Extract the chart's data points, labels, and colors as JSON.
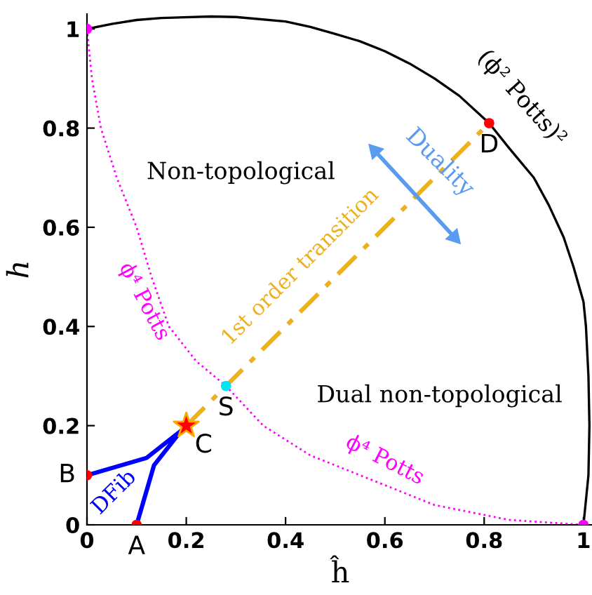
{
  "chart_data": {
    "type": "line",
    "xlabel": "ĥ",
    "ylabel": "h",
    "xlim": [
      0,
      1.02
    ],
    "ylim": [
      0,
      1.03
    ],
    "xticks": [
      0,
      0.2,
      0.4,
      0.6,
      0.8,
      1
    ],
    "yticks": [
      0,
      0.2,
      0.4,
      0.6,
      0.8,
      1
    ],
    "grid": false,
    "series": [
      {
        "name": "(ϕ² Potts)²",
        "color": "#000000",
        "line_style": "solid",
        "x": [
          0,
          0.05,
          0.1,
          0.15,
          0.25,
          0.3,
          0.4,
          0.45,
          0.5,
          0.55,
          0.6,
          0.65,
          0.7,
          0.75,
          0.81,
          0.85,
          0.9,
          0.93,
          0.96,
          0.98,
          1.0,
          1.005,
          1.01,
          1.012,
          1.01,
          1.0
        ],
        "values": [
          1,
          1.01,
          1.018,
          1.022,
          1.025,
          1.024,
          1.015,
          1.004,
          0.99,
          0.975,
          0.955,
          0.93,
          0.9,
          0.865,
          0.81,
          0.76,
          0.7,
          0.645,
          0.58,
          0.52,
          0.45,
          0.4,
          0.3,
          0.2,
          0.1,
          0
        ]
      },
      {
        "name": "ϕ⁴ Potts",
        "color": "#ff00ff",
        "line_style": "dotted",
        "x": [
          0,
          0.01,
          0.028,
          0.06,
          0.1,
          0.13,
          0.165,
          0.22,
          0.28,
          0.355,
          0.45,
          0.55,
          0.7,
          0.85,
          1
        ],
        "values": [
          1,
          0.9,
          0.8,
          0.7,
          0.6,
          0.5,
          0.4,
          0.33,
          0.28,
          0.2,
          0.14,
          0.1,
          0.04,
          0.01,
          0
        ]
      },
      {
        "name": "1st order transition",
        "color": "#edb120",
        "line_style": "dashed",
        "x": [
          0.2,
          0.81
        ],
        "values": [
          0.2,
          0.81
        ]
      },
      {
        "name": "DFib",
        "color": "#0000ff",
        "line_style": "solid",
        "x": [
          0,
          0.12,
          0.19,
          0.19,
          0.135,
          0.1
        ],
        "values": [
          0.1,
          0.135,
          0.19,
          0.19,
          0.12,
          0
        ]
      },
      {
        "name": "Duality",
        "marker": "triangle",
        "color": "#5b9bef",
        "x": [
          0.58,
          0.74
        ],
        "values": [
          0.754,
          0.58
        ]
      },
      {
        "type": "scatter",
        "color": "#ff0000",
        "marker": "circle",
        "x": [
          0.1,
          0,
          0.81
        ],
        "values": [
          0,
          0.1,
          0.81
        ]
      },
      {
        "type": "scatter",
        "color": "#ff0000",
        "marker": "star",
        "x": [
          0.2
        ],
        "values": [
          0.2
        ]
      },
      {
        "type": "scatter",
        "color": "#00e5ee",
        "marker": "circle",
        "x": [
          0.28
        ],
        "values": [
          0.28
        ]
      },
      {
        "type": "scatter",
        "color": "#ff00ff",
        "marker": "circle",
        "x": [
          0,
          1
        ],
        "values": [
          1,
          0
        ]
      }
    ],
    "annotations": [
      "Non-topological",
      "Dual non-topological",
      {
        "text": "A",
        "x": 0.1,
        "y": 0
      },
      {
        "text": "B",
        "x": 0,
        "y": 0.1
      },
      {
        "text": "C",
        "x": 0.2,
        "y": 0.2
      },
      {
        "text": "D",
        "x": 0.81,
        "y": 0.81
      },
      {
        "text": "S",
        "x": 0.28,
        "y": 0.28
      }
    ]
  }
}
